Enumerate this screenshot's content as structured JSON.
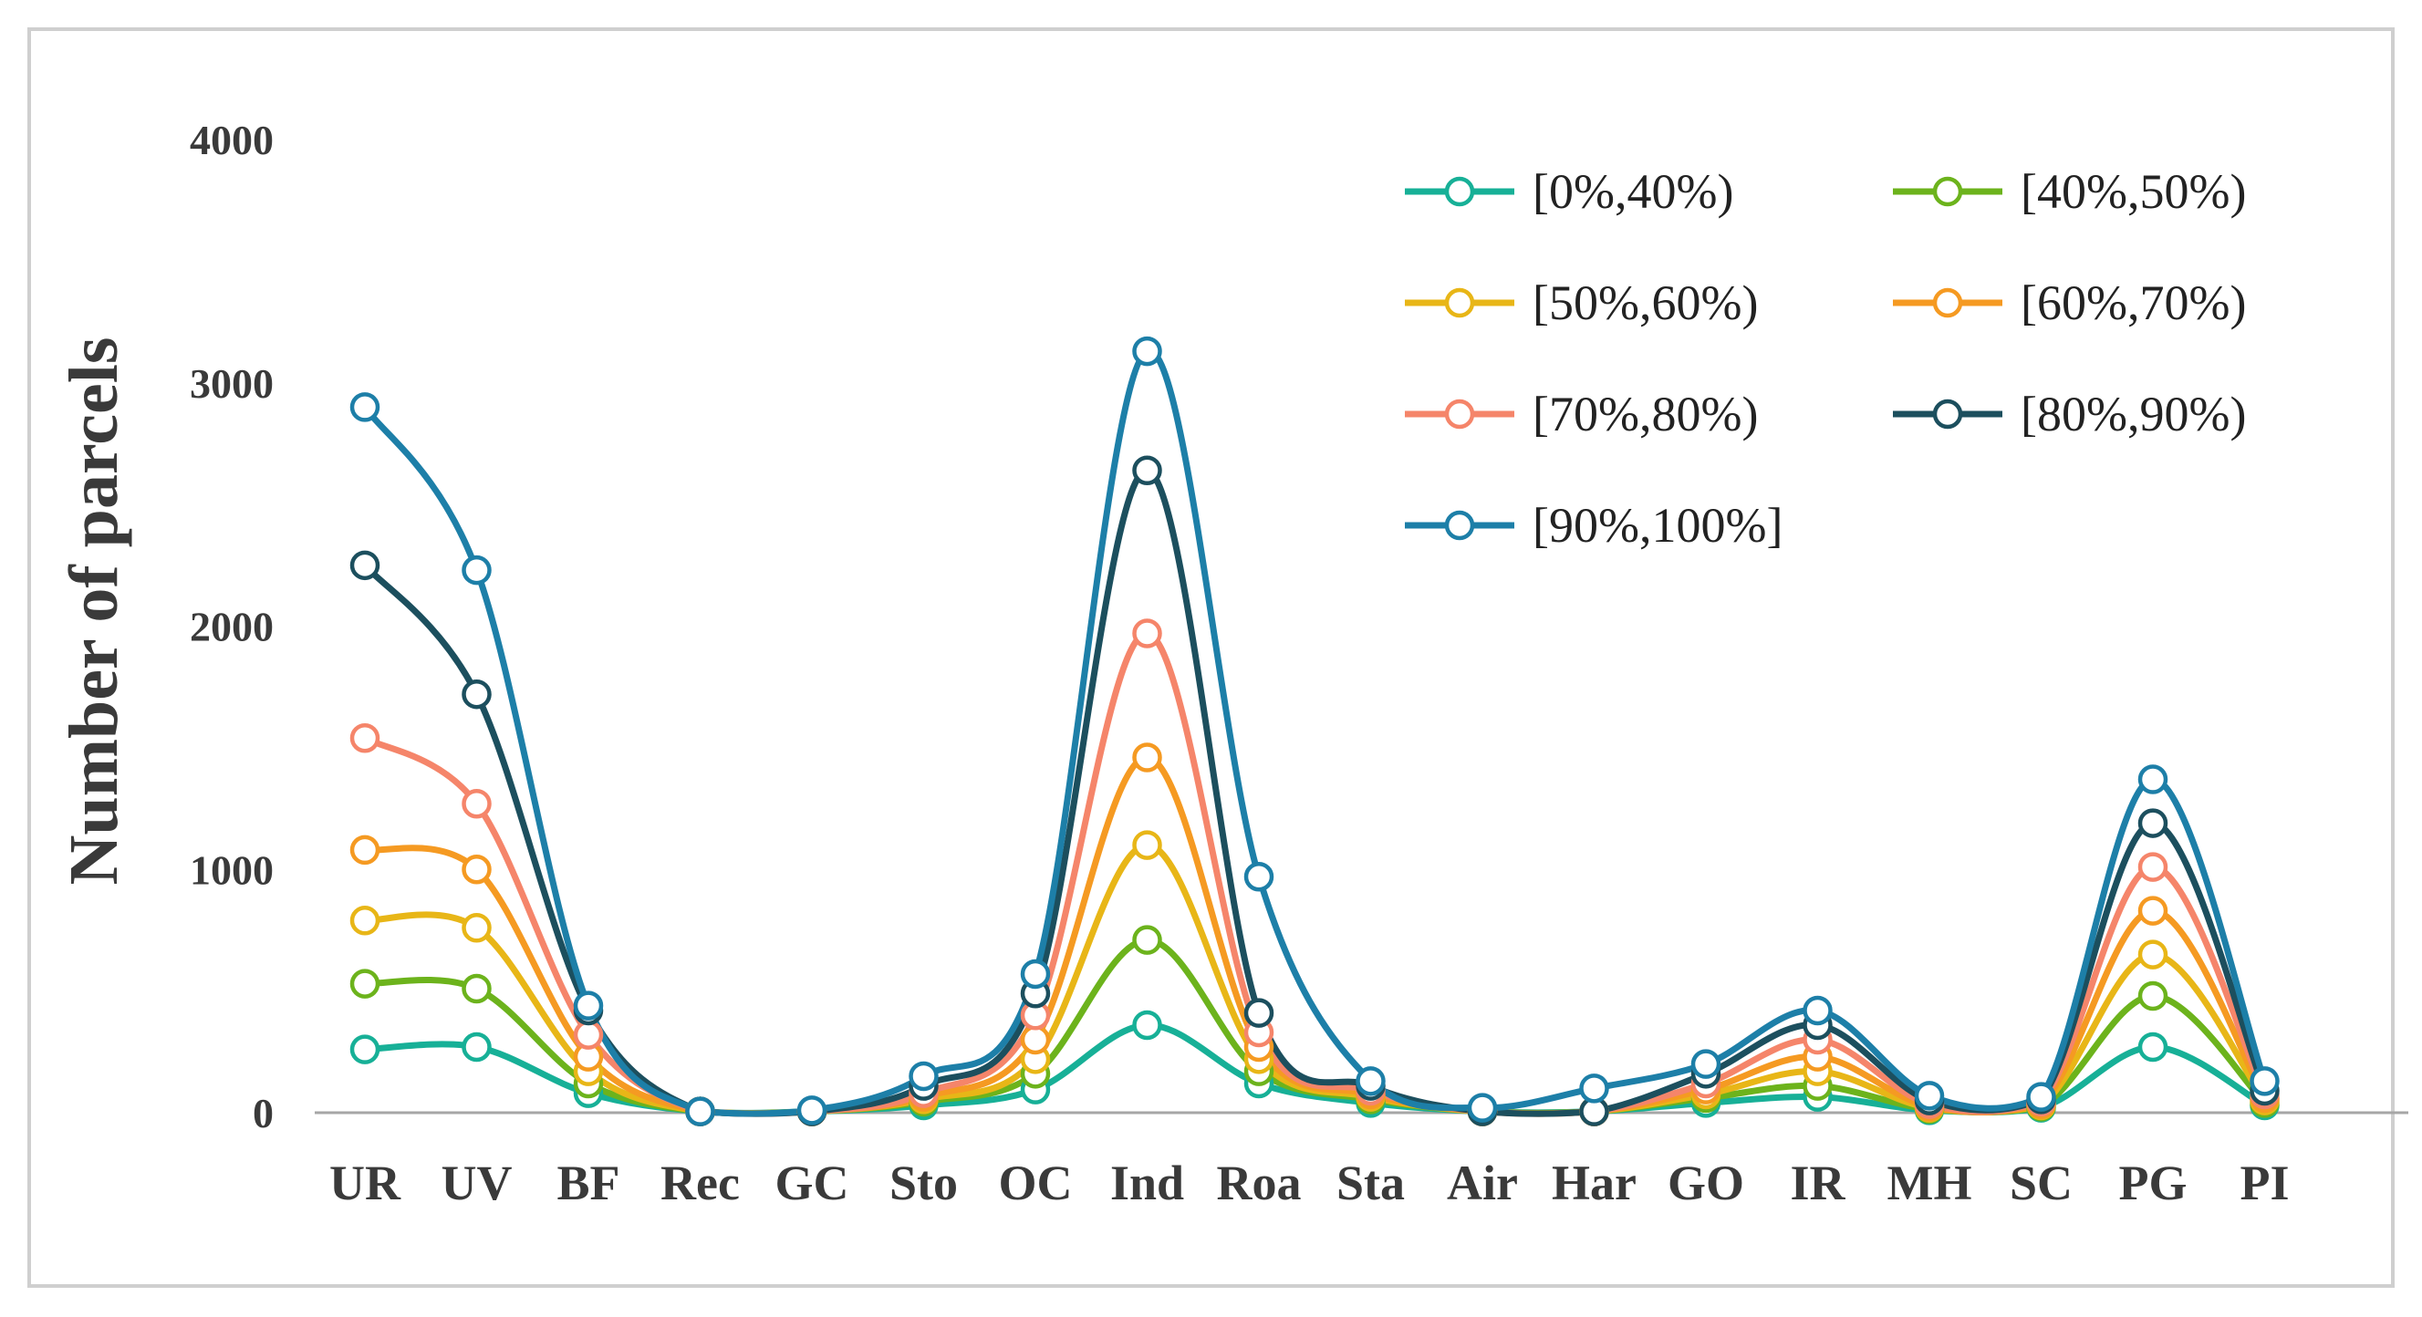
{
  "chart_data": {
    "type": "line",
    "title": "",
    "xlabel": "",
    "ylabel": "Number of parcels",
    "ylim": [
      0,
      4000
    ],
    "yticks": [
      "0",
      "1000",
      "2000",
      "3000",
      "4000"
    ],
    "grid": false,
    "smooth": true,
    "legend_position": "top-right",
    "categories": [
      "UR",
      "UV",
      "BF",
      "Rec",
      "GC",
      "Sto",
      "OC",
      "Ind",
      "Roa",
      "Sta",
      "Air",
      "Har",
      "GO",
      "IR",
      "MH",
      "SC",
      "PG",
      "PI"
    ],
    "series": [
      {
        "name": "[0%,40%)",
        "color": "#17b097",
        "values": [
          260,
          270,
          80,
          5,
          5,
          30,
          95,
          360,
          120,
          40,
          5,
          5,
          40,
          65,
          10,
          20,
          270,
          30
        ]
      },
      {
        "name": "[40%,50%)",
        "color": "#6cb31c",
        "values": [
          530,
          510,
          120,
          5,
          5,
          45,
          160,
          710,
          170,
          55,
          5,
          5,
          60,
          110,
          15,
          25,
          480,
          40
        ]
      },
      {
        "name": "[50%,60%)",
        "color": "#e8b617",
        "values": [
          790,
          760,
          170,
          5,
          5,
          55,
          220,
          1100,
          220,
          65,
          5,
          5,
          75,
          170,
          20,
          30,
          650,
          50
        ]
      },
      {
        "name": "[60%,70%)",
        "color": "#f59a22",
        "values": [
          1080,
          1000,
          230,
          5,
          5,
          65,
          300,
          1460,
          270,
          75,
          5,
          5,
          95,
          230,
          25,
          35,
          830,
          60
        ]
      },
      {
        "name": "[70%,80%)",
        "color": "#f5856a",
        "values": [
          1540,
          1270,
          320,
          5,
          5,
          80,
          400,
          1970,
          330,
          90,
          5,
          5,
          120,
          300,
          35,
          45,
          1010,
          75
        ]
      },
      {
        "name": "[80%,90%)",
        "color": "#1c4f5e",
        "values": [
          2250,
          1720,
          420,
          5,
          5,
          110,
          490,
          2640,
          410,
          110,
          5,
          5,
          160,
          360,
          50,
          55,
          1190,
          90
        ]
      },
      {
        "name": "[90%,100%]",
        "color": "#1d7fa8",
        "values": [
          2900,
          2230,
          440,
          5,
          10,
          150,
          570,
          3130,
          970,
          130,
          20,
          100,
          200,
          420,
          70,
          65,
          1370,
          130
        ]
      }
    ]
  }
}
